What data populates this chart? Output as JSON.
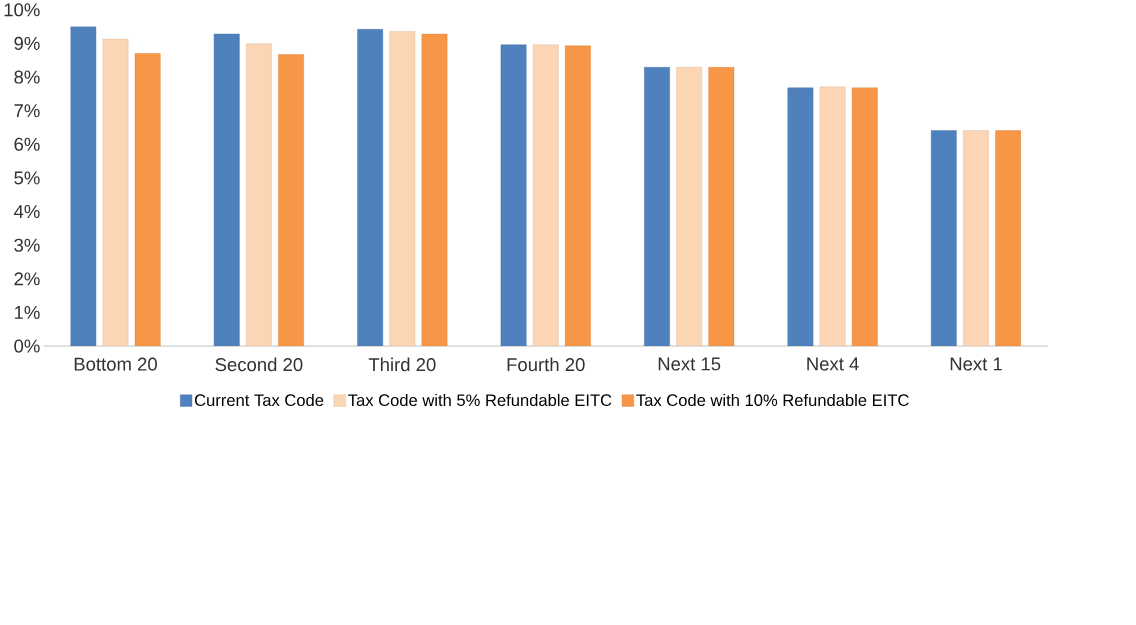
{
  "chart_data": {
    "type": "bar",
    "categories": [
      "Bottom 20",
      "Second 20",
      "Third 20",
      "Fourth 20",
      "Next 15",
      "Next 4",
      "Next 1"
    ],
    "series": [
      {
        "name": "Current Tax Code",
        "color": "#4f81bd",
        "values": [
          9.5,
          9.28,
          9.42,
          8.96,
          8.29,
          7.68,
          6.41
        ]
      },
      {
        "name": "Tax Code with 5% Refundable EITC",
        "color": "#fcd5b5",
        "values": [
          9.13,
          8.99,
          9.36,
          8.96,
          8.29,
          7.71,
          6.41
        ]
      },
      {
        "name": "Tax Code with 10% Refundable EITC",
        "color": "#f79646",
        "values": [
          8.7,
          8.67,
          9.28,
          8.93,
          8.29,
          7.68,
          6.41
        ]
      }
    ],
    "ylim": [
      0,
      10
    ],
    "yticks": [
      {
        "value": 0,
        "label": "0%"
      },
      {
        "value": 1,
        "label": "1%"
      },
      {
        "value": 2,
        "label": "2%"
      },
      {
        "value": 3,
        "label": "3%"
      },
      {
        "value": 4,
        "label": "4%"
      },
      {
        "value": 5,
        "label": "5%"
      },
      {
        "value": 6,
        "label": "6%"
      },
      {
        "value": 7,
        "label": "7%"
      },
      {
        "value": 8,
        "label": "8%"
      },
      {
        "value": 9,
        "label": "9%"
      },
      {
        "value": 10,
        "label": "10%"
      }
    ],
    "grid": false,
    "legend": "bottom"
  }
}
